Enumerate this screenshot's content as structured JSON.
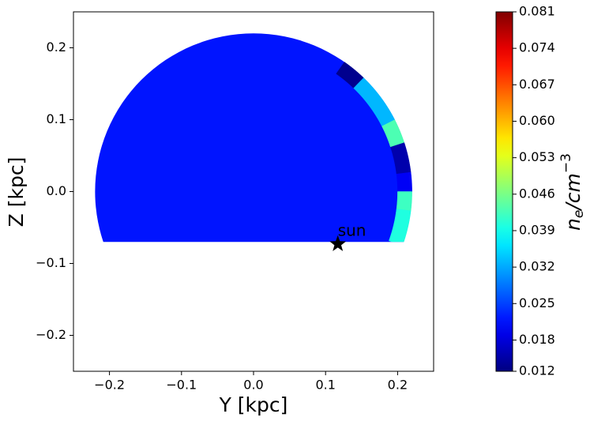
{
  "chart_data": {
    "type": "polar_map",
    "xlabel": "Y [kpc]",
    "ylabel": "Z [kpc]",
    "xlim": [
      -0.25,
      0.25
    ],
    "ylim": [
      -0.25,
      0.25
    ],
    "xticks": [
      {
        "value": -0.2,
        "label": "−0.2"
      },
      {
        "value": -0.1,
        "label": "−0.1"
      },
      {
        "value": 0,
        "label": "0.0"
      },
      0.1,
      0.2
    ],
    "yticks": [
      {
        "value": -0.2,
        "label": "−0.2"
      },
      {
        "value": -0.1,
        "label": "−0.1"
      },
      {
        "value": 0,
        "label": "0.0"
      },
      0.1,
      0.2
    ],
    "disk": {
      "radius": 0.22,
      "z_min": -0.07,
      "value": 0.022
    },
    "sectors": [
      {
        "theta": [
          46,
          55
        ],
        "r": [
          0.2,
          0.22
        ],
        "value": 0.013
      },
      {
        "theta": [
          27,
          46
        ],
        "r": [
          0.2,
          0.22
        ],
        "value": 0.033
      },
      {
        "theta": [
          18,
          27
        ],
        "r": [
          0.2,
          0.22
        ],
        "value": 0.043
      },
      {
        "theta": [
          7,
          18
        ],
        "r": [
          0.2,
          0.22
        ],
        "value": 0.015
      },
      {
        "theta": [
          0,
          7
        ],
        "r": [
          0.2,
          0.22
        ],
        "value": 0.02
      },
      {
        "theta": [
          -7,
          0
        ],
        "r": [
          0.2,
          0.22
        ],
        "value": 0.042
      },
      {
        "theta": [
          -20,
          -7
        ],
        "r": [
          0.2,
          0.22
        ],
        "value": 0.04
      }
    ],
    "points": [
      {
        "label": "sun",
        "x": 0.117,
        "y": -0.073
      }
    ],
    "colormap": "jet",
    "clim": [
      0.012,
      0.081
    ],
    "cticks": [
      0.012,
      0.018,
      0.025,
      0.032,
      0.039,
      0.046,
      0.053,
      {
        "value": 0.06,
        "label": "0.060"
      },
      0.067,
      0.074,
      0.081
    ],
    "colorbar_label": {
      "base": "n",
      "sub": "e",
      "mid": "/cm",
      "sup": "−3"
    }
  }
}
